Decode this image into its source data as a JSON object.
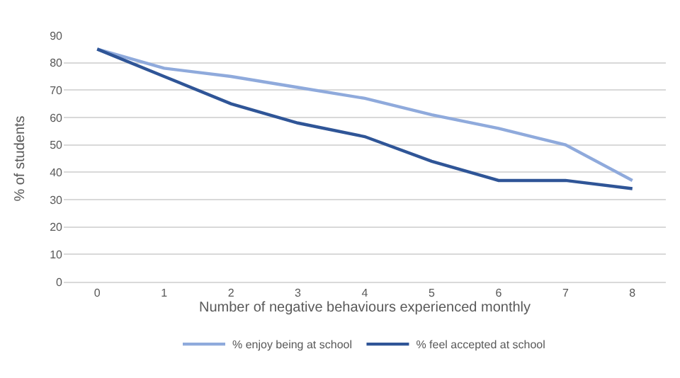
{
  "chart_data": {
    "type": "line",
    "xlabel": "Number of negative behaviours experienced monthly",
    "ylabel": "% of students",
    "categories": [
      "0",
      "1",
      "2",
      "3",
      "4",
      "5",
      "6",
      "7",
      "8"
    ],
    "series": [
      {
        "name": "% enjoy being at school",
        "color": "#8faadc",
        "values": [
          85,
          78,
          75,
          71,
          67,
          61,
          56,
          50,
          37
        ]
      },
      {
        "name": "% feel accepted at school",
        "color": "#2f5597",
        "values": [
          85,
          75,
          65,
          58,
          53,
          44,
          37,
          37,
          34
        ]
      }
    ],
    "ylim": [
      0,
      90
    ],
    "yticks": [
      0,
      10,
      20,
      30,
      40,
      50,
      60,
      70,
      80,
      90
    ],
    "grid": "y",
    "legend": "bottom",
    "marker": "none",
    "line_style": "solid"
  }
}
